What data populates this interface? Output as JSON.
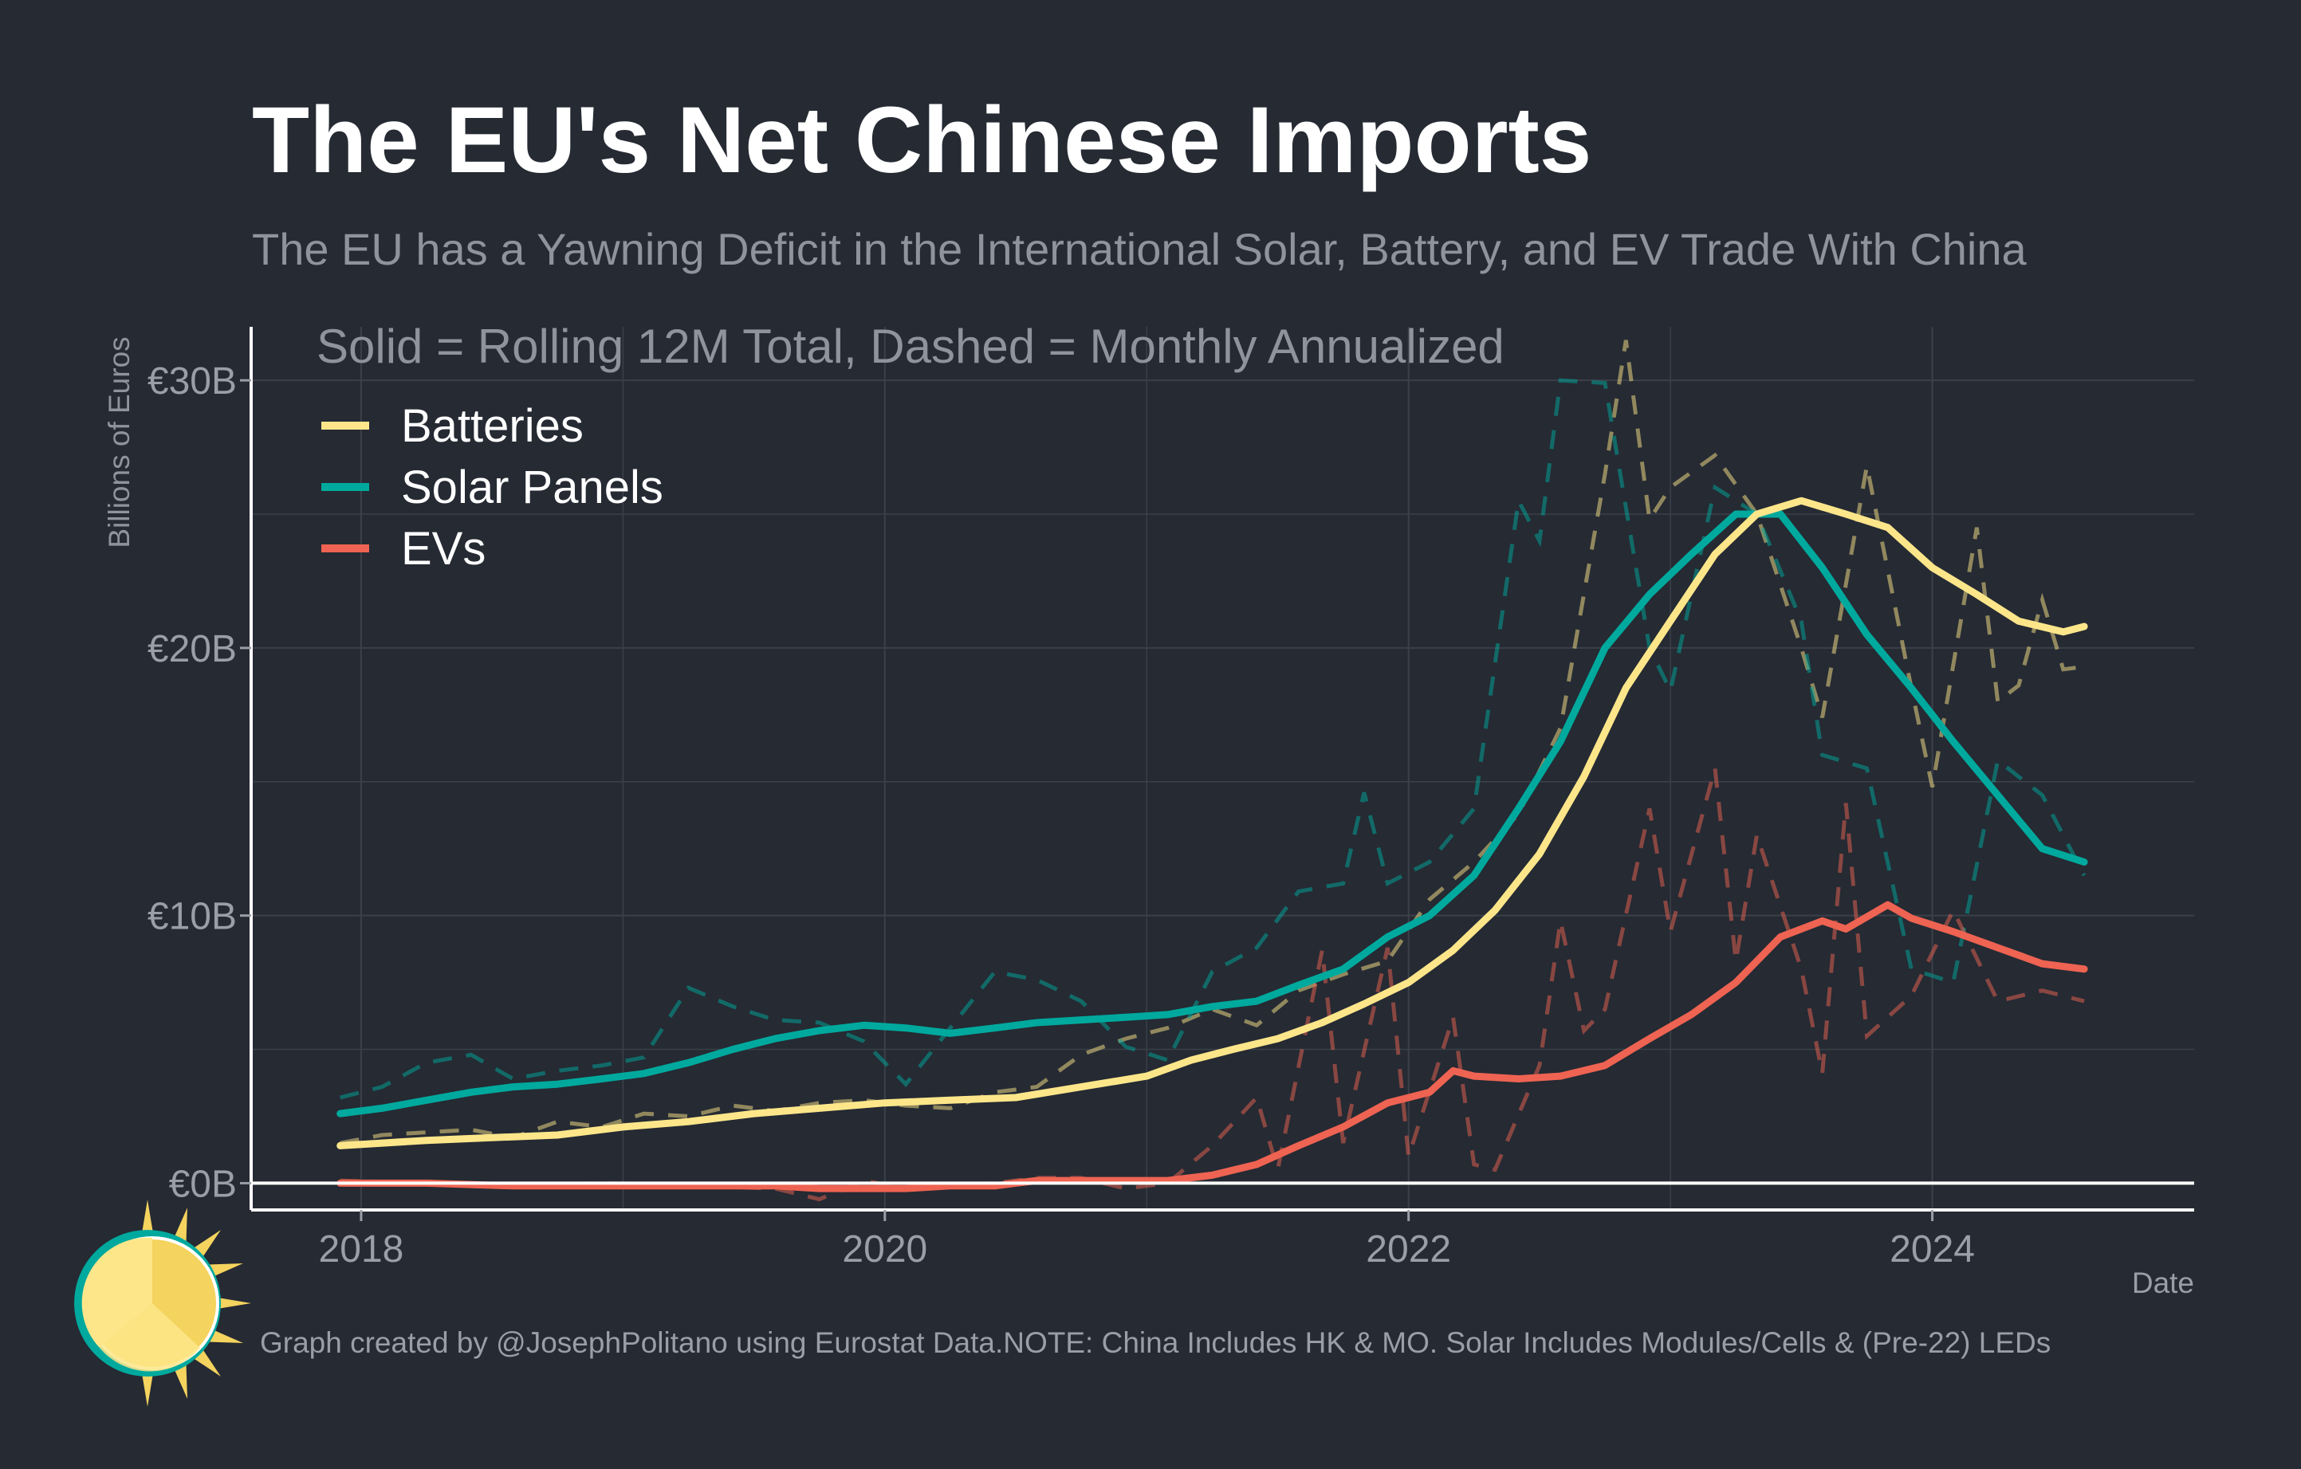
{
  "title": "The EU's Net Chinese Imports",
  "subtitle": "The EU has a Yawning Deficit in the International Solar, Battery, and EV Trade With China",
  "caption": "Graph created by @JosephPolitano using Eurostat Data.NOTE: China Includes HK & MO. Solar Includes Modules/Cells & (Pre-22) LEDs",
  "colors": {
    "background": "#252a33",
    "batteries": "#fde68a",
    "solar": "#00a99d",
    "evs": "#ee6352",
    "grid": "#3b4049"
  },
  "logo_icon": "sun-logo-icon",
  "chart_data": {
    "type": "line",
    "annotation": "Solid = Rolling 12M Total, Dashed = Monthly Annualized",
    "xlabel": "Date",
    "ylabel": "Billions of Euros",
    "x_ticks": [
      "2018",
      "2020",
      "2022",
      "2024"
    ],
    "x_tick_values": [
      2018,
      2020,
      2022,
      2024
    ],
    "y_ticks": [
      "€0B",
      "€10B",
      "€20B",
      "€30B"
    ],
    "y_tick_values": [
      0,
      10,
      20,
      30
    ],
    "xlim": [
      2017.58,
      2025.0
    ],
    "ylim": [
      -1,
      32
    ],
    "grid": true,
    "legend_position": "top-left",
    "series": [
      {
        "name": "Batteries",
        "color": "#fde68a",
        "solid": [
          [
            2017.92,
            1.4
          ],
          [
            2018.25,
            1.6
          ],
          [
            2018.5,
            1.7
          ],
          [
            2018.75,
            1.8
          ],
          [
            2019.0,
            2.1
          ],
          [
            2019.25,
            2.3
          ],
          [
            2019.5,
            2.6
          ],
          [
            2019.75,
            2.8
          ],
          [
            2020.0,
            3.0
          ],
          [
            2020.25,
            3.1
          ],
          [
            2020.5,
            3.2
          ],
          [
            2020.75,
            3.6
          ],
          [
            2021.0,
            4.0
          ],
          [
            2021.17,
            4.6
          ],
          [
            2021.33,
            5.0
          ],
          [
            2021.5,
            5.4
          ],
          [
            2021.67,
            6.0
          ],
          [
            2021.83,
            6.7
          ],
          [
            2022.0,
            7.5
          ],
          [
            2022.17,
            8.7
          ],
          [
            2022.33,
            10.2
          ],
          [
            2022.5,
            12.3
          ],
          [
            2022.67,
            15.2
          ],
          [
            2022.83,
            18.5
          ],
          [
            2023.0,
            21.0
          ],
          [
            2023.17,
            23.5
          ],
          [
            2023.33,
            25.0
          ],
          [
            2023.5,
            25.5
          ],
          [
            2023.67,
            25.0
          ],
          [
            2023.83,
            24.5
          ],
          [
            2024.0,
            23.0
          ],
          [
            2024.17,
            22.0
          ],
          [
            2024.33,
            21.0
          ],
          [
            2024.5,
            20.6
          ],
          [
            2024.58,
            20.8
          ]
        ],
        "dashed": [
          [
            2017.92,
            1.5
          ],
          [
            2018.08,
            1.8
          ],
          [
            2018.25,
            1.9
          ],
          [
            2018.42,
            2.0
          ],
          [
            2018.58,
            1.7
          ],
          [
            2018.75,
            2.3
          ],
          [
            2018.92,
            2.1
          ],
          [
            2019.08,
            2.6
          ],
          [
            2019.25,
            2.5
          ],
          [
            2019.42,
            2.9
          ],
          [
            2019.58,
            2.7
          ],
          [
            2019.75,
            3.0
          ],
          [
            2019.92,
            3.1
          ],
          [
            2020.08,
            2.9
          ],
          [
            2020.25,
            2.8
          ],
          [
            2020.42,
            3.4
          ],
          [
            2020.58,
            3.6
          ],
          [
            2020.75,
            4.8
          ],
          [
            2020.92,
            5.4
          ],
          [
            2021.08,
            5.8
          ],
          [
            2021.25,
            6.5
          ],
          [
            2021.42,
            5.9
          ],
          [
            2021.58,
            7.2
          ],
          [
            2021.75,
            7.8
          ],
          [
            2021.92,
            8.3
          ],
          [
            2022.08,
            10.6
          ],
          [
            2022.25,
            12.0
          ],
          [
            2022.42,
            13.8
          ],
          [
            2022.58,
            17.0
          ],
          [
            2022.75,
            26.5
          ],
          [
            2022.83,
            31.5
          ],
          [
            2022.92,
            24.8
          ],
          [
            2023.0,
            26.0
          ],
          [
            2023.17,
            27.2
          ],
          [
            2023.33,
            25.0
          ],
          [
            2023.5,
            20.0
          ],
          [
            2023.58,
            17.4
          ],
          [
            2023.75,
            26.8
          ],
          [
            2023.92,
            18.5
          ],
          [
            2024.0,
            14.8
          ],
          [
            2024.17,
            24.5
          ],
          [
            2024.25,
            18.0
          ],
          [
            2024.33,
            18.6
          ],
          [
            2024.42,
            21.8
          ],
          [
            2024.5,
            19.2
          ],
          [
            2024.58,
            19.3
          ]
        ]
      },
      {
        "name": "Solar Panels",
        "color": "#00a99d",
        "solid": [
          [
            2017.92,
            2.6
          ],
          [
            2018.08,
            2.8
          ],
          [
            2018.25,
            3.1
          ],
          [
            2018.42,
            3.4
          ],
          [
            2018.58,
            3.6
          ],
          [
            2018.75,
            3.7
          ],
          [
            2018.92,
            3.9
          ],
          [
            2019.08,
            4.1
          ],
          [
            2019.25,
            4.5
          ],
          [
            2019.42,
            5.0
          ],
          [
            2019.58,
            5.4
          ],
          [
            2019.75,
            5.7
          ],
          [
            2019.92,
            5.9
          ],
          [
            2020.08,
            5.8
          ],
          [
            2020.25,
            5.6
          ],
          [
            2020.42,
            5.8
          ],
          [
            2020.58,
            6.0
          ],
          [
            2020.75,
            6.1
          ],
          [
            2020.92,
            6.2
          ],
          [
            2021.08,
            6.3
          ],
          [
            2021.25,
            6.6
          ],
          [
            2021.42,
            6.8
          ],
          [
            2021.58,
            7.4
          ],
          [
            2021.75,
            8.0
          ],
          [
            2021.92,
            9.2
          ],
          [
            2022.08,
            10.0
          ],
          [
            2022.25,
            11.5
          ],
          [
            2022.42,
            14.0
          ],
          [
            2022.58,
            16.5
          ],
          [
            2022.75,
            20.0
          ],
          [
            2022.92,
            22.0
          ],
          [
            2023.08,
            23.5
          ],
          [
            2023.25,
            25.0
          ],
          [
            2023.42,
            25.0
          ],
          [
            2023.58,
            23.0
          ],
          [
            2023.75,
            20.5
          ],
          [
            2023.92,
            18.5
          ],
          [
            2024.08,
            16.5
          ],
          [
            2024.25,
            14.5
          ],
          [
            2024.42,
            12.5
          ],
          [
            2024.58,
            12.0
          ]
        ],
        "dashed": [
          [
            2017.92,
            3.2
          ],
          [
            2018.08,
            3.6
          ],
          [
            2018.25,
            4.5
          ],
          [
            2018.42,
            4.8
          ],
          [
            2018.58,
            3.9
          ],
          [
            2018.75,
            4.2
          ],
          [
            2018.92,
            4.4
          ],
          [
            2019.08,
            4.7
          ],
          [
            2019.25,
            7.3
          ],
          [
            2019.42,
            6.6
          ],
          [
            2019.58,
            6.1
          ],
          [
            2019.75,
            6.0
          ],
          [
            2019.92,
            5.3
          ],
          [
            2020.08,
            3.7
          ],
          [
            2020.25,
            5.8
          ],
          [
            2020.42,
            7.9
          ],
          [
            2020.58,
            7.6
          ],
          [
            2020.75,
            6.8
          ],
          [
            2020.92,
            5.1
          ],
          [
            2021.08,
            4.6
          ],
          [
            2021.25,
            7.9
          ],
          [
            2021.42,
            8.8
          ],
          [
            2021.58,
            10.9
          ],
          [
            2021.75,
            11.2
          ],
          [
            2021.83,
            14.6
          ],
          [
            2021.92,
            11.2
          ],
          [
            2022.08,
            12.0
          ],
          [
            2022.25,
            14.0
          ],
          [
            2022.42,
            25.5
          ],
          [
            2022.5,
            24.0
          ],
          [
            2022.58,
            30.0
          ],
          [
            2022.75,
            29.9
          ],
          [
            2022.92,
            20.0
          ],
          [
            2023.0,
            18.4
          ],
          [
            2023.17,
            26.0
          ],
          [
            2023.33,
            25.0
          ],
          [
            2023.5,
            21.0
          ],
          [
            2023.58,
            16.0
          ],
          [
            2023.75,
            15.5
          ],
          [
            2023.92,
            8.0
          ],
          [
            2024.08,
            7.5
          ],
          [
            2024.25,
            15.8
          ],
          [
            2024.42,
            14.5
          ],
          [
            2024.58,
            11.5
          ]
        ]
      },
      {
        "name": "EVs",
        "color": "#ee6352",
        "solid": [
          [
            2017.92,
            0.0
          ],
          [
            2018.25,
            0.0
          ],
          [
            2018.58,
            -0.1
          ],
          [
            2018.92,
            -0.1
          ],
          [
            2019.25,
            -0.1
          ],
          [
            2019.58,
            -0.1
          ],
          [
            2019.75,
            -0.2
          ],
          [
            2019.92,
            -0.2
          ],
          [
            2020.08,
            -0.2
          ],
          [
            2020.25,
            -0.1
          ],
          [
            2020.42,
            -0.1
          ],
          [
            2020.58,
            0.1
          ],
          [
            2020.75,
            0.1
          ],
          [
            2020.92,
            0.1
          ],
          [
            2021.08,
            0.1
          ],
          [
            2021.25,
            0.3
          ],
          [
            2021.42,
            0.7
          ],
          [
            2021.58,
            1.4
          ],
          [
            2021.75,
            2.1
          ],
          [
            2021.92,
            3.0
          ],
          [
            2022.08,
            3.4
          ],
          [
            2022.17,
            4.2
          ],
          [
            2022.25,
            4.0
          ],
          [
            2022.42,
            3.9
          ],
          [
            2022.58,
            4.0
          ],
          [
            2022.75,
            4.4
          ],
          [
            2022.92,
            5.4
          ],
          [
            2023.08,
            6.3
          ],
          [
            2023.25,
            7.5
          ],
          [
            2023.42,
            9.2
          ],
          [
            2023.58,
            9.8
          ],
          [
            2023.67,
            9.5
          ],
          [
            2023.83,
            10.4
          ],
          [
            2023.92,
            9.9
          ],
          [
            2024.08,
            9.4
          ],
          [
            2024.25,
            8.8
          ],
          [
            2024.42,
            8.2
          ],
          [
            2024.58,
            8.0
          ]
        ],
        "dashed": [
          [
            2017.92,
            0.1
          ],
          [
            2018.25,
            0.0
          ],
          [
            2018.58,
            -0.1
          ],
          [
            2018.92,
            0.0
          ],
          [
            2019.25,
            -0.1
          ],
          [
            2019.58,
            -0.2
          ],
          [
            2019.75,
            -0.6
          ],
          [
            2019.92,
            0.1
          ],
          [
            2020.08,
            -0.2
          ],
          [
            2020.25,
            -0.1
          ],
          [
            2020.42,
            0.0
          ],
          [
            2020.58,
            0.2
          ],
          [
            2020.75,
            0.2
          ],
          [
            2020.92,
            -0.2
          ],
          [
            2021.08,
            0.0
          ],
          [
            2021.25,
            1.4
          ],
          [
            2021.42,
            3.2
          ],
          [
            2021.5,
            0.5
          ],
          [
            2021.67,
            8.7
          ],
          [
            2021.75,
            1.5
          ],
          [
            2021.92,
            8.8
          ],
          [
            2022.0,
            1.0
          ],
          [
            2022.17,
            6.2
          ],
          [
            2022.25,
            0.7
          ],
          [
            2022.33,
            0.5
          ],
          [
            2022.5,
            4.4
          ],
          [
            2022.58,
            9.8
          ],
          [
            2022.67,
            5.7
          ],
          [
            2022.75,
            6.5
          ],
          [
            2022.92,
            14.0
          ],
          [
            2023.0,
            9.4
          ],
          [
            2023.17,
            15.5
          ],
          [
            2023.25,
            8.3
          ],
          [
            2023.33,
            13.0
          ],
          [
            2023.5,
            8.0
          ],
          [
            2023.58,
            4.1
          ],
          [
            2023.67,
            14.2
          ],
          [
            2023.75,
            5.5
          ],
          [
            2023.92,
            7.0
          ],
          [
            2024.08,
            10.2
          ],
          [
            2024.25,
            6.8
          ],
          [
            2024.42,
            7.2
          ],
          [
            2024.58,
            6.8
          ]
        ]
      }
    ]
  }
}
